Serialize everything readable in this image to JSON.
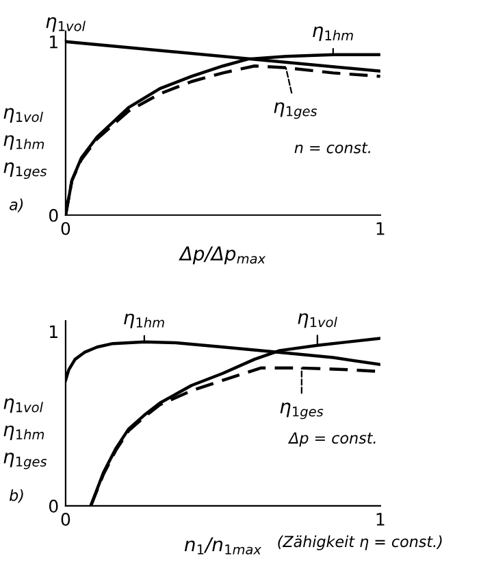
{
  "chart_data": [
    {
      "type": "line",
      "xlabel": "Δp/Δp$_{max}$",
      "ylabel": "η$_{1vol}$\nη$_{1hm}$\nη$_{1ges}$",
      "xlim": [
        0,
        1
      ],
      "ylim": [
        0,
        1.06
      ],
      "xticks": [
        0,
        1
      ],
      "yticks": [
        0,
        1
      ],
      "grid": false,
      "annotations": [
        "a)",
        "n = const."
      ],
      "series": [
        {
          "name": "η$_{1vol}$",
          "color": "#000000",
          "line_style": "solid",
          "x": [
            0,
            1
          ],
          "values": [
            1,
            0.83
          ]
        },
        {
          "name": "η$_{1hm}$",
          "color": "#000000",
          "line_style": "solid",
          "x": [
            0,
            0.02,
            0.05,
            0.1,
            0.2,
            0.3,
            0.4,
            0.5,
            0.58,
            0.7,
            0.85,
            1
          ],
          "values": [
            0,
            0.2,
            0.33,
            0.45,
            0.62,
            0.73,
            0.8,
            0.86,
            0.9,
            0.915,
            0.925,
            0.925
          ]
        },
        {
          "name": "η$_{1ges}$",
          "color": "#000000",
          "line_style": "dashed",
          "x": [
            0,
            0.02,
            0.05,
            0.1,
            0.2,
            0.3,
            0.4,
            0.5,
            0.6,
            0.7,
            0.85,
            1
          ],
          "values": [
            0,
            0.2,
            0.32,
            0.44,
            0.6,
            0.7,
            0.77,
            0.82,
            0.86,
            0.85,
            0.82,
            0.8
          ]
        }
      ]
    },
    {
      "type": "line",
      "xlabel": "n$_{1}$/n$_{1max}$",
      "ylabel": "η$_{1vol}$\nη$_{1hm}$\nη$_{1ges}$",
      "xlim": [
        0,
        1
      ],
      "ylim": [
        0,
        1.06
      ],
      "xticks": [
        0,
        1
      ],
      "yticks": [
        0,
        1
      ],
      "grid": false,
      "annotations": [
        "b)",
        "Δp = const.",
        "(Zähigkeit η = const.)"
      ],
      "series": [
        {
          "name": "η$_{1hm}$",
          "color": "#000000",
          "line_style": "solid",
          "x": [
            0,
            0.01,
            0.03,
            0.06,
            0.1,
            0.15,
            0.25,
            0.35,
            0.5,
            0.68,
            0.85,
            1
          ],
          "values": [
            0.72,
            0.78,
            0.84,
            0.88,
            0.91,
            0.93,
            0.94,
            0.935,
            0.91,
            0.88,
            0.85,
            0.81
          ]
        },
        {
          "name": "η$_{1vol}$",
          "color": "#000000",
          "line_style": "solid",
          "x": [
            0.08,
            0.12,
            0.16,
            0.2,
            0.25,
            0.3,
            0.4,
            0.5,
            0.6,
            0.68,
            0.8,
            0.9,
            1
          ],
          "values": [
            0,
            0.19,
            0.33,
            0.44,
            0.52,
            0.59,
            0.69,
            0.76,
            0.84,
            0.89,
            0.92,
            0.94,
            0.96
          ]
        },
        {
          "name": "η$_{1ges}$",
          "color": "#000000",
          "line_style": "dashed",
          "x": [
            0.08,
            0.12,
            0.16,
            0.2,
            0.25,
            0.3,
            0.4,
            0.5,
            0.62,
            0.75,
            0.9,
            1
          ],
          "values": [
            0,
            0.18,
            0.32,
            0.43,
            0.51,
            0.58,
            0.66,
            0.72,
            0.79,
            0.79,
            0.78,
            0.77
          ]
        }
      ]
    }
  ]
}
